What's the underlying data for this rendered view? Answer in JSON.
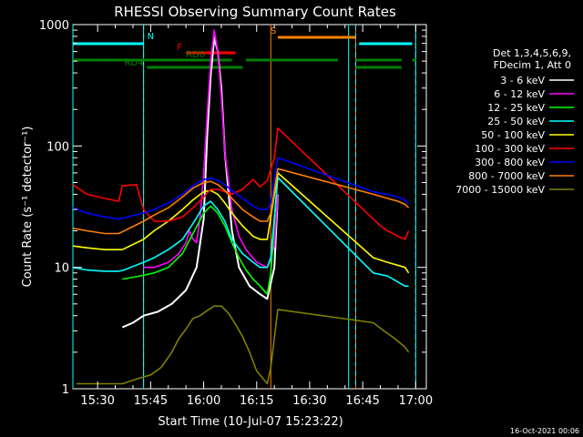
{
  "colors": {
    "background": "#000000",
    "foreground": "#ffffff",
    "attenuator_marker": "#00ffff",
    "saa_marker": "#ff8000"
  },
  "chart_data": {
    "type": "line",
    "title": "RHESSI Observing Summary Count Rates",
    "xlabel": "Start Time (10-Jul-07 15:23:22)",
    "ylabel": "Count Rate (s⁻¹ detector⁻¹)",
    "y_scale": "log",
    "ylim": [
      1,
      1000
    ],
    "x_unit": "minutes UT",
    "xlim": [
      "15:23",
      "17:03"
    ],
    "x_ticks": [
      "15:30",
      "15:45",
      "16:00",
      "16:15",
      "16:30",
      "16:45",
      "17:00"
    ],
    "y_ticks": [
      "1",
      "10",
      "100",
      "1000"
    ],
    "grid": false,
    "legend_position": "right",
    "legend_header": [
      "Det 1,3,4,5,6,9,",
      "FDecim 1, Att 0"
    ],
    "footer_stamp": "16-Oct-2021 00:06",
    "series": [
      {
        "name": "3 - 6 keV",
        "color": "#ffffff",
        "stroke": "#000000",
        "x": [
          "15:37",
          "15:40",
          "15:43",
          "15:47",
          "15:51",
          "15:55",
          "15:58",
          "16:00",
          "16:01",
          "16:02",
          "16:03",
          "16:04",
          "16:05",
          "16:06",
          "16:08",
          "16:10",
          "16:13",
          "16:16",
          "16:18",
          "16:20",
          "16:21"
        ],
        "y": [
          3.2,
          3.5,
          4.0,
          4.3,
          5.0,
          6.5,
          10,
          25,
          120,
          380,
          780,
          600,
          300,
          90,
          20,
          10,
          7,
          6,
          5.5,
          10,
          40
        ]
      },
      {
        "name": "6 - 12 keV",
        "color": "#ff00ff",
        "x": [
          "15:43",
          "15:46",
          "15:50",
          "15:53",
          "15:55",
          "15:56",
          "15:57",
          "15:58",
          "15:59",
          "16:00",
          "16:01",
          "16:02",
          "16:03",
          "16:04",
          "16:05",
          "16:06",
          "16:08",
          "16:10",
          "16:12",
          "16:15",
          "16:18",
          "16:20",
          "16:21"
        ],
        "y": [
          10,
          10,
          11,
          13,
          16,
          20,
          17,
          16,
          26,
          60,
          180,
          500,
          900,
          600,
          250,
          90,
          30,
          18,
          14,
          11,
          10,
          15,
          40
        ]
      },
      {
        "name": "12 - 25 keV",
        "color": "#00ff00",
        "x": [
          "15:37",
          "15:42",
          "15:46",
          "15:50",
          "15:54",
          "15:57",
          "16:00",
          "16:02",
          "16:04",
          "16:06",
          "16:08",
          "16:10",
          "16:12",
          "16:14",
          "16:16",
          "16:18",
          "16:19",
          "16:21"
        ],
        "y": [
          8,
          8.5,
          9,
          10,
          13,
          19,
          28,
          32,
          28,
          22,
          16,
          12,
          9.5,
          8,
          7,
          6,
          9,
          60
        ]
      },
      {
        "name": "25 - 50 keV",
        "color": "#00ffff",
        "x": [
          "15:23",
          "15:27",
          "15:32",
          "15:36",
          "15:37",
          "15:43",
          "15:46",
          "15:50",
          "15:54",
          "15:57",
          "16:00",
          "16:02",
          "16:04",
          "16:06",
          "16:08",
          "16:11",
          "16:14",
          "16:16",
          "16:18",
          "16:19",
          "16:21",
          "16:48",
          "16:52",
          "16:57",
          "16:58"
        ],
        "y": [
          10,
          9.5,
          9.3,
          9.3,
          9.4,
          11,
          12,
          14,
          17,
          23,
          32,
          35,
          30,
          24,
          17,
          13,
          11,
          10,
          10,
          12,
          55,
          9,
          8.5,
          7,
          7
        ]
      },
      {
        "name": "50 - 100 keV",
        "color": "#ffff00",
        "x": [
          "15:23",
          "15:27",
          "15:32",
          "15:36",
          "15:37",
          "15:43",
          "15:46",
          "15:50",
          "15:54",
          "15:57",
          "16:00",
          "16:02",
          "16:04",
          "16:06",
          "16:08",
          "16:11",
          "16:14",
          "16:16",
          "16:18",
          "16:21",
          "16:48",
          "16:52",
          "16:57",
          "16:58"
        ],
        "y": [
          15,
          14.5,
          14,
          14,
          14,
          17,
          20,
          24,
          30,
          36,
          42,
          43,
          40,
          34,
          28,
          22,
          18,
          17,
          17,
          60,
          12,
          11,
          10,
          9
        ]
      },
      {
        "name": "100 - 300 keV",
        "color": "#ff0000",
        "x": [
          "15:23",
          "15:27",
          "15:32",
          "15:36",
          "15:37",
          "15:41",
          "15:43",
          "15:46",
          "15:50",
          "15:54",
          "15:57",
          "16:00",
          "16:02",
          "16:04",
          "16:06",
          "16:08",
          "16:11",
          "16:14",
          "16:16",
          "16:18",
          "16:20",
          "16:21",
          "16:48",
          "16:50",
          "16:52",
          "16:55",
          "16:57",
          "16:58"
        ],
        "y": [
          48,
          40,
          37,
          35,
          47,
          48,
          30,
          24,
          24,
          26,
          31,
          38,
          44,
          44,
          42,
          40,
          44,
          53,
          46,
          52,
          80,
          140,
          25,
          22,
          20,
          18,
          17,
          20
        ]
      },
      {
        "name": "300 - 800 keV",
        "color": "#0000ff",
        "x": [
          "15:23",
          "15:27",
          "15:32",
          "15:36",
          "15:43",
          "15:46",
          "15:50",
          "15:54",
          "15:57",
          "16:00",
          "16:02",
          "16:04",
          "16:06",
          "16:08",
          "16:11",
          "16:14",
          "16:16",
          "16:18",
          "16:19",
          "16:21",
          "16:48",
          "16:52",
          "16:55",
          "16:57",
          "16:58"
        ],
        "y": [
          31,
          28,
          26,
          25,
          28,
          30,
          34,
          40,
          47,
          53,
          54,
          52,
          48,
          43,
          37,
          32,
          30,
          30,
          34,
          80,
          42,
          40,
          38,
          36,
          33
        ]
      },
      {
        "name": "800 - 7000 keV",
        "color": "#ff8000",
        "x": [
          "15:23",
          "15:27",
          "15:32",
          "15:36",
          "15:43",
          "15:46",
          "15:50",
          "15:54",
          "15:57",
          "16:00",
          "16:02",
          "16:04",
          "16:06",
          "16:08",
          "16:11",
          "16:14",
          "16:16",
          "16:18",
          "16:19",
          "16:21",
          "16:48",
          "16:52",
          "16:55",
          "16:57",
          "16:58"
        ],
        "y": [
          21,
          20,
          19,
          19,
          24,
          27,
          31,
          38,
          45,
          50,
          51,
          48,
          43,
          37,
          30,
          26,
          24,
          24,
          28,
          65,
          40,
          37,
          35,
          33,
          31
        ]
      },
      {
        "name": "7000 - 15000 keV",
        "color": "#808000",
        "x": [
          "15:24",
          "15:30",
          "15:37",
          "15:41",
          "15:45",
          "15:48",
          "15:51",
          "15:53",
          "15:55",
          "15:57",
          "15:59",
          "16:01",
          "16:03",
          "16:05",
          "16:07",
          "16:09",
          "16:11",
          "16:13",
          "16:15",
          "16:18",
          "16:19",
          "16:21",
          "16:48",
          "16:51",
          "16:54",
          "16:57",
          "16:58"
        ],
        "y": [
          1.1,
          1.1,
          1.1,
          1.2,
          1.3,
          1.5,
          2.0,
          2.6,
          3.1,
          3.8,
          4.0,
          4.4,
          4.8,
          4.8,
          4.2,
          3.4,
          2.7,
          2.0,
          1.4,
          1.1,
          1.5,
          4.5,
          3.5,
          3.0,
          2.6,
          2.2,
          2.0
        ]
      }
    ],
    "annotations": {
      "attenuator_lines": [
        "15:23",
        "15:43",
        "16:41",
        "17:00"
      ],
      "saa_lines": [
        "16:19",
        "16:43"
      ],
      "dashed_lines": [
        "15:43",
        "16:43",
        "17:00"
      ],
      "state_bars": [
        {
          "label": "N",
          "color": "#00ffff",
          "ranges": [
            [
              "15:23",
              "15:43"
            ],
            [
              "16:44",
              "16:59"
            ]
          ]
        },
        {
          "label": "S",
          "color": "#ff8000",
          "ranges": [
            [
              "16:21",
              "16:43"
            ]
          ]
        },
        {
          "label": "F",
          "color": "#ff0000",
          "ranges": [
            [
              "15:55",
              "16:09"
            ]
          ]
        },
        {
          "label": "RD0",
          "color": "#008000",
          "ranges": [
            [
              "15:23",
              "16:08"
            ],
            [
              "16:12",
              "16:38"
            ],
            [
              "16:43",
              "16:56"
            ],
            [
              "16:59",
              "17:00"
            ]
          ]
        },
        {
          "label": "RD4",
          "color": "#008000",
          "ranges": [
            [
              "15:44",
              "16:11"
            ],
            [
              "16:43",
              "16:56"
            ]
          ]
        }
      ]
    }
  }
}
